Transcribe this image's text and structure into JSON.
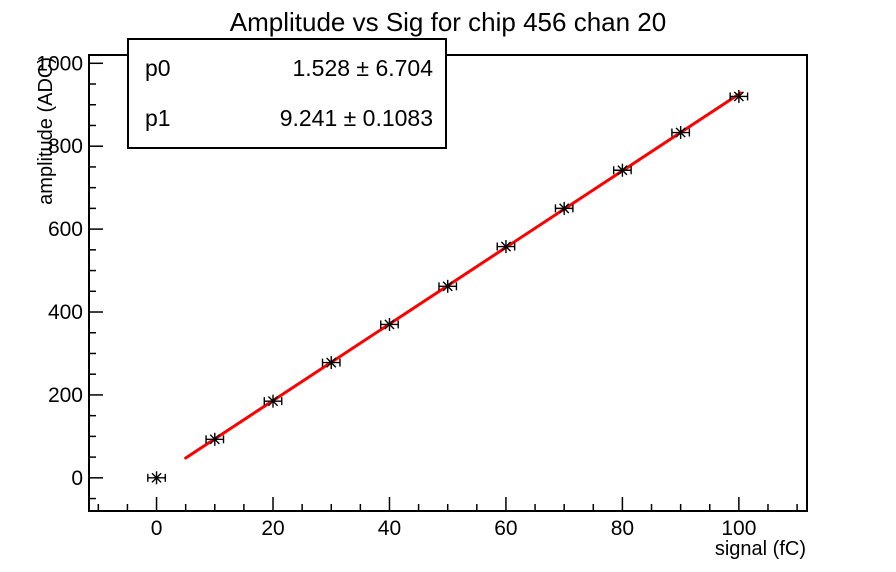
{
  "title": "Amplitude vs Sig for chip 456 chan 20",
  "stats_box": {
    "rows": [
      {
        "name": "p0",
        "value_text": "1.528 ± 6.704"
      },
      {
        "name": "p1",
        "value_text": "9.241 ± 0.1083"
      }
    ]
  },
  "chart_data": {
    "type": "scatter",
    "title": "Amplitude vs Sig for chip 456 chan 20",
    "xlabel": "signal (fC)",
    "ylabel": "amplitude (ADC)",
    "xlim": [
      -11.6,
      111.7
    ],
    "ylim": [
      -80,
      1020
    ],
    "x_ticks": [
      0,
      20,
      40,
      60,
      80,
      100
    ],
    "y_ticks": [
      0,
      200,
      400,
      600,
      800,
      1000
    ],
    "x_minor_step": 5,
    "y_minor_step": 50,
    "grid": false,
    "background": "#ffffff",
    "axis_color": "#000000",
    "series": [
      {
        "name": "measured-points",
        "type": "scatter",
        "marker": "asterisk-with-x-error-bars",
        "color": "#000000",
        "x": [
          0,
          10,
          20,
          30,
          40,
          50,
          60,
          70,
          80,
          90,
          100
        ],
        "y": [
          0,
          93,
          185,
          278,
          370,
          462,
          558,
          650,
          742,
          833,
          920
        ],
        "xerr": 1.5
      },
      {
        "name": "linear-fit",
        "type": "line",
        "color": "#ff0000",
        "p0": 1.528,
        "p1": 9.241,
        "x_start": 5,
        "x_end": 100.3
      }
    ],
    "legend": null
  }
}
